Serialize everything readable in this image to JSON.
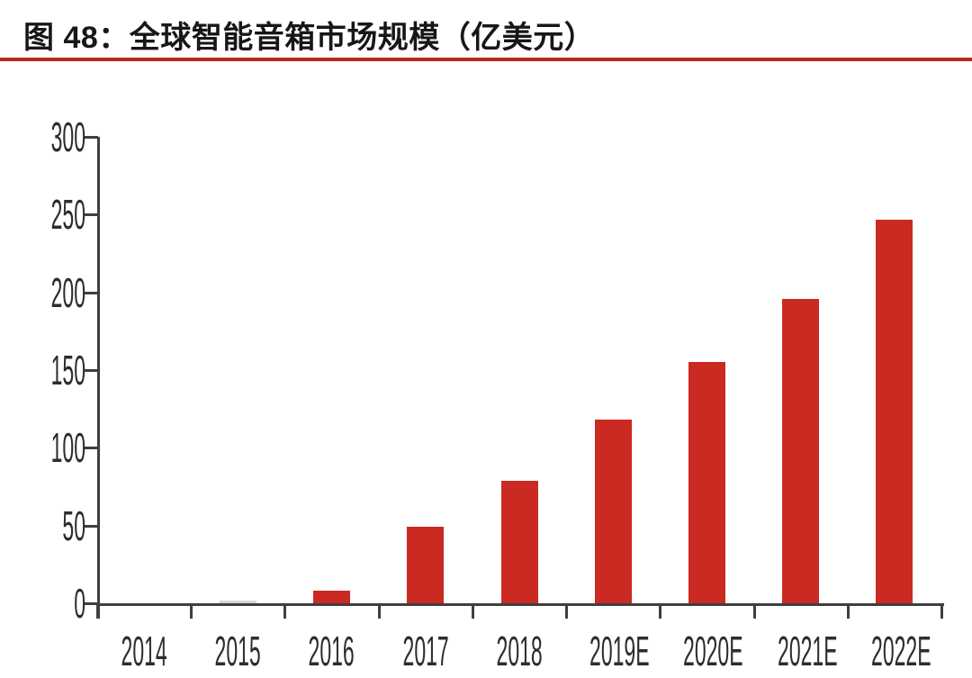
{
  "figure": {
    "title": "图 48：全球智能音箱市场规模（亿美元）"
  },
  "chart_data": {
    "type": "bar",
    "title": "全球智能音箱市场规模（亿美元）",
    "xlabel": "",
    "ylabel": "",
    "unit": "亿美元",
    "categories": [
      "2014",
      "2015",
      "2016",
      "2017",
      "2018",
      "2019E",
      "2020E",
      "2021E",
      "2022E"
    ],
    "values": [
      0,
      2,
      8,
      49,
      79,
      118,
      155,
      196,
      247
    ],
    "ylim": [
      0,
      300
    ],
    "yticks": [
      0,
      50,
      100,
      150,
      200,
      250,
      300
    ],
    "grid": false,
    "legend": "none",
    "bar_colors": [
      "#cb2a22",
      "#dcd4cb",
      "#cb2a22",
      "#cb2a22",
      "#cb2a22",
      "#cb2a22",
      "#cb2a22",
      "#cb2a22",
      "#cb2a22"
    ],
    "colors": {
      "bar": "#cb2a22",
      "bar_2015_faded": "#dcd4cb",
      "axis": "#3f3f3f",
      "tick_text": "#2d2d2d",
      "title_text": "#171717",
      "title_rule": "#b52a21"
    }
  }
}
